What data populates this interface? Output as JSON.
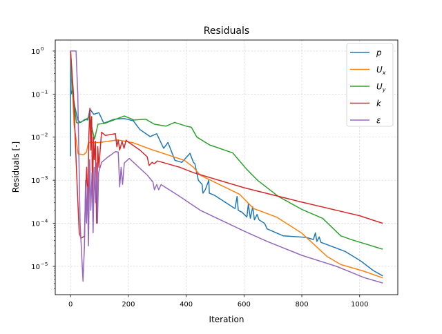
{
  "chart_data": {
    "type": "line",
    "title": "Residuals",
    "xlabel": "Iteration",
    "ylabel": "Residuals [-]",
    "xlim": [
      -53,
      1132
    ],
    "ylim": [
      2.2e-06,
      1.8
    ],
    "yscale": "log",
    "grid": true,
    "legend_placement": "top-right",
    "x_ticks": [
      0,
      200,
      400,
      600,
      800,
      1000
    ],
    "x_tick_labels": [
      "0",
      "200",
      "400",
      "600",
      "800",
      "1000"
    ],
    "y_ticks": [
      1,
      0.1,
      0.01,
      0.001,
      0.0001,
      1e-05
    ],
    "y_tick_labels": [
      {
        "base": "10",
        "exp": "0"
      },
      {
        "base": "10",
        "exp": "−1"
      },
      {
        "base": "10",
        "exp": "−2"
      },
      {
        "base": "10",
        "exp": "−3"
      },
      {
        "base": "10",
        "exp": "−4"
      },
      {
        "base": "10",
        "exp": "−5"
      }
    ],
    "series": [
      {
        "name": "p",
        "name_sub": "",
        "color": "#1f77b4",
        "points": [
          [
            0,
            0.0036
          ],
          [
            0,
            1
          ],
          [
            2,
            0.1
          ],
          [
            6,
            0.12
          ],
          [
            15,
            0.05
          ],
          [
            25,
            0.025
          ],
          [
            35,
            0.022
          ],
          [
            50,
            0.026
          ],
          [
            60,
            0.025
          ],
          [
            67,
            0.045
          ],
          [
            80,
            0.034
          ],
          [
            98,
            0.037
          ],
          [
            115,
            0.021
          ],
          [
            150,
            0.026
          ],
          [
            186,
            0.027
          ],
          [
            217,
            0.024
          ],
          [
            240,
            0.015
          ],
          [
            275,
            0.0103
          ],
          [
            298,
            0.012
          ],
          [
            322,
            0.0055
          ],
          [
            337,
            0.0075
          ],
          [
            361,
            0.0029
          ],
          [
            385,
            0.0026
          ],
          [
            413,
            0.0042
          ],
          [
            425,
            0.0026
          ],
          [
            430,
            0.0024
          ],
          [
            442,
            0.001
          ],
          [
            455,
            0.0008
          ],
          [
            458,
            0.0005
          ],
          [
            466,
            0.0006
          ],
          [
            478,
            0.001
          ],
          [
            480,
            0.0005
          ],
          [
            497,
            0.00045
          ],
          [
            569,
            0.00022
          ],
          [
            576,
            0.00042
          ],
          [
            580,
            0.0002
          ],
          [
            593,
            0.00018
          ],
          [
            610,
            0.00014
          ],
          [
            615,
            0.00028
          ],
          [
            622,
            0.00013
          ],
          [
            630,
            0.00024
          ],
          [
            636,
            0.00012
          ],
          [
            645,
            0.00016
          ],
          [
            652,
            0.00012
          ],
          [
            671,
            0.0001
          ],
          [
            680,
            7.4e-05
          ],
          [
            736,
            5.1e-05
          ],
          [
            815,
            4.7e-05
          ],
          [
            840,
            4.2e-05
          ],
          [
            847,
            6e-05
          ],
          [
            852,
            3.8e-05
          ],
          [
            860,
            4.8e-05
          ],
          [
            866,
            3.6e-05
          ],
          [
            887,
            3.2e-05
          ],
          [
            951,
            2.2e-05
          ],
          [
            1006,
            1.3e-05
          ],
          [
            1047,
            8e-06
          ],
          [
            1080,
            6e-06
          ]
        ]
      },
      {
        "name": "U",
        "name_sub": "x",
        "color": "#ff7f0e",
        "points": [
          [
            0,
            1
          ],
          [
            5,
            0.2
          ],
          [
            12,
            0.02
          ],
          [
            26,
            0.0041
          ],
          [
            45,
            0.0039
          ],
          [
            55,
            0.0045
          ],
          [
            62,
            0.0075
          ],
          [
            100,
            0.0075
          ],
          [
            163,
            0.0086
          ],
          [
            217,
            0.0074
          ],
          [
            282,
            0.0051
          ],
          [
            394,
            0.0029
          ],
          [
            425,
            0.002
          ],
          [
            449,
            0.0013
          ],
          [
            585,
            0.00047
          ],
          [
            633,
            0.00022
          ],
          [
            712,
            0.00014
          ],
          [
            800,
            5.9e-05
          ],
          [
            887,
            1.7e-05
          ],
          [
            935,
            1.1e-05
          ],
          [
            1015,
            7.7e-06
          ],
          [
            1080,
            5.4e-06
          ]
        ]
      },
      {
        "name": "U",
        "name_sub": "y",
        "color": "#2ca02c",
        "points": [
          [
            0,
            1
          ],
          [
            8,
            0.1
          ],
          [
            20,
            0.022
          ],
          [
            26,
            0.021
          ],
          [
            50,
            0.025
          ],
          [
            67,
            0.03
          ],
          [
            75,
            0.015
          ],
          [
            83,
            0.009
          ],
          [
            95,
            0.02
          ],
          [
            120,
            0.021
          ],
          [
            186,
            0.031
          ],
          [
            220,
            0.025
          ],
          [
            260,
            0.026
          ],
          [
            290,
            0.02
          ],
          [
            330,
            0.018
          ],
          [
            360,
            0.022
          ],
          [
            400,
            0.018
          ],
          [
            418,
            0.017
          ],
          [
            437,
            0.01
          ],
          [
            481,
            0.0066
          ],
          [
            561,
            0.0043
          ],
          [
            609,
            0.0018
          ],
          [
            648,
            0.00098
          ],
          [
            719,
            0.00042
          ],
          [
            800,
            0.00021
          ],
          [
            872,
            0.00013
          ],
          [
            935,
            5.1e-05
          ],
          [
            975,
            4.1e-05
          ],
          [
            1015,
            3.4e-05
          ],
          [
            1080,
            2.5e-05
          ]
        ]
      },
      {
        "name": "k",
        "name_sub": "",
        "color": "#d62728",
        "points": [
          [
            0,
            1
          ],
          [
            10,
            0.1
          ],
          [
            20,
            0.002
          ],
          [
            30,
            6e-05
          ],
          [
            36,
            4.5e-05
          ],
          [
            48,
            5e-05
          ],
          [
            52,
            0.0005
          ],
          [
            56,
            0.002
          ],
          [
            60,
            0.0002
          ],
          [
            63,
            0.01
          ],
          [
            67,
            0.047
          ],
          [
            70,
            0.005
          ],
          [
            73,
            0.03
          ],
          [
            76,
            0.0003
          ],
          [
            79,
            0.01
          ],
          [
            82,
            0.003
          ],
          [
            86,
            0.008
          ],
          [
            90,
            0.0001
          ],
          [
            94,
            0.006
          ],
          [
            98,
            0.002
          ],
          [
            107,
            0.013
          ],
          [
            120,
            0.011
          ],
          [
            155,
            0.012
          ],
          [
            160,
            0.006
          ],
          [
            165,
            0.0085
          ],
          [
            170,
            0.005
          ],
          [
            178,
            0.008
          ],
          [
            185,
            0.0055
          ],
          [
            192,
            0.0085
          ],
          [
            203,
            0.0074
          ],
          [
            240,
            0.005
          ],
          [
            265,
            0.0035
          ],
          [
            272,
            0.0022
          ],
          [
            282,
            0.0026
          ],
          [
            290,
            0.0024
          ],
          [
            300,
            0.0028
          ],
          [
            378,
            0.002
          ],
          [
            425,
            0.0015
          ],
          [
            600,
            0.00067
          ],
          [
            800,
            0.00031
          ],
          [
            1000,
            0.00015
          ],
          [
            1080,
            0.0001
          ]
        ]
      },
      {
        "name": "ε",
        "name_sub": "",
        "color": "#9467bd",
        "points": [
          [
            0,
            1
          ],
          [
            19,
            1
          ],
          [
            25,
            0.1
          ],
          [
            33,
            0.0001
          ],
          [
            43,
            4.5e-06
          ],
          [
            48,
            3e-05
          ],
          [
            52,
            0.001
          ],
          [
            55,
            0.0001
          ],
          [
            58,
            0.0007
          ],
          [
            62,
            3e-05
          ],
          [
            66,
            0.003
          ],
          [
            70,
            0.0002
          ],
          [
            74,
            0.0015
          ],
          [
            78,
            6e-05
          ],
          [
            82,
            0.002
          ],
          [
            86,
            0.0003
          ],
          [
            90,
            0.0025
          ],
          [
            93,
            0.0001
          ],
          [
            97,
            0.0015
          ],
          [
            107,
            0.0026
          ],
          [
            130,
            0.0035
          ],
          [
            155,
            0.0046
          ],
          [
            165,
            0.0045
          ],
          [
            170,
            0.0007
          ],
          [
            175,
            0.002
          ],
          [
            180,
            0.0008
          ],
          [
            186,
            0.0025
          ],
          [
            203,
            0.0032
          ],
          [
            266,
            0.0013
          ],
          [
            285,
            0.0009
          ],
          [
            290,
            0.0006
          ],
          [
            298,
            0.00079
          ],
          [
            305,
            0.0006
          ],
          [
            313,
            0.00079
          ],
          [
            378,
            0.00042
          ],
          [
            449,
            0.0002
          ],
          [
            600,
            6.6e-05
          ],
          [
            680,
            3.8e-05
          ],
          [
            800,
            1.8e-05
          ],
          [
            920,
            1e-05
          ],
          [
            1015,
            5.5e-06
          ],
          [
            1080,
            4.1e-06
          ]
        ]
      }
    ]
  }
}
